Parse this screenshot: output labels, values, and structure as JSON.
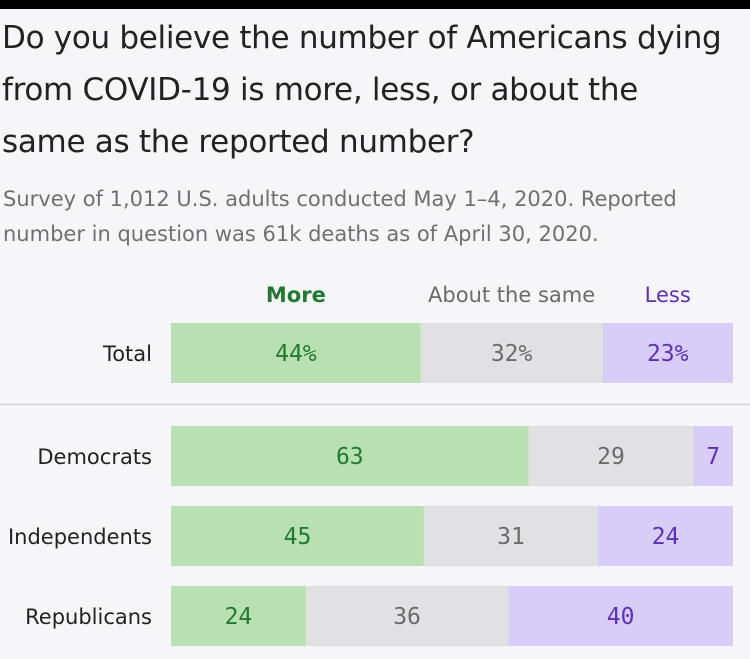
{
  "title": "Do you believe the number of Americans dying from COVID-19 is more, less, or about the same as the reported number?",
  "subtitle": "Survey of 1,012 U.S. adults conducted May 1–4, 2020. Reported number in question was 61k deaths as of April 30, 2020.",
  "colors": {
    "more_fill": "#b9e0b3",
    "more_text": "#1f7a32",
    "same_fill": "#e1e0e2",
    "same_text": "#6b6b6b",
    "less_fill": "#d8cdf6",
    "less_text": "#5b2fc0",
    "background": "#f6f5f7",
    "divider": "#d6d6d6"
  },
  "chart_data": {
    "type": "bar",
    "orientation": "horizontal",
    "stacked": true,
    "categories": [
      "Total",
      "Democrats",
      "Independents",
      "Republicans"
    ],
    "value_labels": [
      [
        "44%",
        "32%",
        "23%"
      ],
      [
        "63",
        "29",
        "7"
      ],
      [
        "45",
        "31",
        "24"
      ],
      [
        "24",
        "36",
        "40"
      ]
    ],
    "series": [
      {
        "name": "More",
        "values": [
          44,
          63,
          45,
          24
        ]
      },
      {
        "name": "About the same",
        "values": [
          32,
          29,
          31,
          36
        ]
      },
      {
        "name": "Less",
        "values": [
          23,
          7,
          24,
          40
        ]
      }
    ],
    "legend": "top"
  }
}
